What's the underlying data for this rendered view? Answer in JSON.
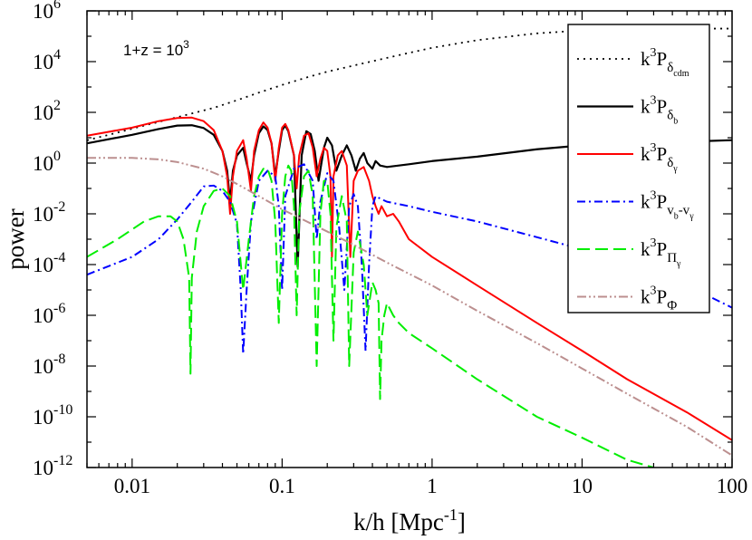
{
  "chart_data": {
    "type": "line",
    "xscale": "log",
    "yscale": "log",
    "xlim": [
      0.005,
      100
    ],
    "ylim": [
      1e-12,
      1000000.0
    ],
    "xlabel": {
      "main": "k/h [Mpc",
      "sup": "-1",
      "end": "]"
    },
    "ylabel": "power",
    "annotation": {
      "text": "1+z = 10",
      "sup": "3"
    },
    "x_ticks": [
      {
        "value": 0.01,
        "label": "0.01"
      },
      {
        "value": 0.1,
        "label": "0.1"
      },
      {
        "value": 1,
        "label": "1"
      },
      {
        "value": 10,
        "label": "10"
      },
      {
        "value": 100,
        "label": "100"
      }
    ],
    "y_ticks": [
      {
        "exp": 6,
        "base": "10",
        "sup": "6"
      },
      {
        "exp": 4,
        "base": "10",
        "sup": "4"
      },
      {
        "exp": 2,
        "base": "10",
        "sup": "2"
      },
      {
        "exp": 0,
        "base": "10",
        "sup": "0"
      },
      {
        "exp": -2,
        "base": "10",
        "sup": "-2"
      },
      {
        "exp": -4,
        "base": "10",
        "sup": "-4"
      },
      {
        "exp": -6,
        "base": "10",
        "sup": "-6"
      },
      {
        "exp": -8,
        "base": "10",
        "sup": "-8"
      },
      {
        "exp": -10,
        "base": "10",
        "sup": "-10"
      },
      {
        "exp": -12,
        "base": "10",
        "sup": "-12"
      }
    ],
    "series": [
      {
        "id": "cdm",
        "legend_main": "k",
        "legend_sup": "3",
        "legend_p": "P",
        "legend_sub": "δ",
        "legend_subsub": "cdm",
        "color": "#000000",
        "dash": "2,5",
        "width": 1.8,
        "points": [
          [
            0.005,
            7.9
          ],
          [
            0.008,
            16
          ],
          [
            0.012,
            30
          ],
          [
            0.018,
            55
          ],
          [
            0.025,
            90
          ],
          [
            0.035,
            150
          ],
          [
            0.05,
            300
          ],
          [
            0.07,
            600
          ],
          [
            0.1,
            1200
          ],
          [
            0.15,
            2500
          ],
          [
            0.2,
            4000
          ],
          [
            0.3,
            7000
          ],
          [
            0.5,
            14000
          ],
          [
            0.7,
            22000
          ],
          [
            1,
            35000
          ],
          [
            2,
            70000
          ],
          [
            5,
            130000
          ],
          [
            10,
            170000
          ],
          [
            20,
            190000
          ],
          [
            50,
            200000
          ],
          [
            100,
            200000
          ]
        ]
      },
      {
        "id": "baryon",
        "legend_main": "k",
        "legend_sup": "3",
        "legend_p": "P",
        "legend_sub": "δ",
        "legend_subsub": "b",
        "color": "#000000",
        "dash": "",
        "width": 2.2,
        "points": [
          [
            0.005,
            6
          ],
          [
            0.01,
            13
          ],
          [
            0.015,
            22
          ],
          [
            0.02,
            30
          ],
          [
            0.025,
            31
          ],
          [
            0.03,
            24
          ],
          [
            0.035,
            13
          ],
          [
            0.04,
            3
          ],
          [
            0.043,
            0.5
          ],
          [
            0.045,
            0.03
          ],
          [
            0.047,
            0.5
          ],
          [
            0.05,
            2
          ],
          [
            0.055,
            4
          ],
          [
            0.058,
            1
          ],
          [
            0.062,
            0.2
          ],
          [
            0.065,
            2
          ],
          [
            0.07,
            15
          ],
          [
            0.075,
            28
          ],
          [
            0.08,
            20
          ],
          [
            0.085,
            6
          ],
          [
            0.09,
            0.3
          ],
          [
            0.095,
            3
          ],
          [
            0.1,
            20
          ],
          [
            0.105,
            30
          ],
          [
            0.11,
            18
          ],
          [
            0.12,
            2
          ],
          [
            0.127,
            8e-05
          ],
          [
            0.135,
            2
          ],
          [
            0.145,
            18
          ],
          [
            0.155,
            14
          ],
          [
            0.165,
            3
          ],
          [
            0.175,
            0.2
          ],
          [
            0.19,
            4
          ],
          [
            0.2,
            10
          ],
          [
            0.215,
            5
          ],
          [
            0.23,
            0.5
          ],
          [
            0.25,
            2
          ],
          [
            0.27,
            5
          ],
          [
            0.29,
            2
          ],
          [
            0.31,
            0.5
          ],
          [
            0.33,
            1.5
          ],
          [
            0.35,
            2.5
          ],
          [
            0.37,
            1
          ],
          [
            0.4,
            0.6
          ],
          [
            0.42,
            1.2
          ],
          [
            0.45,
            0.8
          ],
          [
            0.5,
            0.7
          ],
          [
            0.6,
            0.8
          ],
          [
            0.7,
            0.9
          ],
          [
            1,
            1.2
          ],
          [
            2,
            1.8
          ],
          [
            5,
            3.5
          ],
          [
            10,
            5
          ],
          [
            20,
            6
          ],
          [
            50,
            7
          ],
          [
            100,
            8
          ]
        ]
      },
      {
        "id": "photon",
        "legend_main": "k",
        "legend_sup": "3",
        "legend_p": "P",
        "legend_sub": "δ",
        "legend_subsub": "γ",
        "color": "#ff0000",
        "dash": "",
        "width": 2.0,
        "points": [
          [
            0.005,
            12
          ],
          [
            0.01,
            25
          ],
          [
            0.015,
            45
          ],
          [
            0.02,
            60
          ],
          [
            0.025,
            62
          ],
          [
            0.03,
            45
          ],
          [
            0.035,
            20
          ],
          [
            0.04,
            3
          ],
          [
            0.043,
            0.3
          ],
          [
            0.045,
            0.01
          ],
          [
            0.047,
            0.3
          ],
          [
            0.05,
            3
          ],
          [
            0.055,
            8
          ],
          [
            0.058,
            1.5
          ],
          [
            0.062,
            0.08
          ],
          [
            0.065,
            3
          ],
          [
            0.07,
            20
          ],
          [
            0.075,
            40
          ],
          [
            0.08,
            25
          ],
          [
            0.085,
            6
          ],
          [
            0.09,
            0.2
          ],
          [
            0.095,
            4
          ],
          [
            0.1,
            25
          ],
          [
            0.105,
            35
          ],
          [
            0.11,
            20
          ],
          [
            0.12,
            2
          ],
          [
            0.125,
            0.1
          ],
          [
            0.13,
            2
          ],
          [
            0.14,
            12
          ],
          [
            0.15,
            15
          ],
          [
            0.16,
            4
          ],
          [
            0.17,
            0.3
          ],
          [
            0.18,
            1.5
          ],
          [
            0.19,
            4
          ],
          [
            0.2,
            3
          ],
          [
            0.21,
            0.3
          ],
          [
            0.215,
            0.0002
          ],
          [
            0.22,
            0.3
          ],
          [
            0.235,
            2
          ],
          [
            0.25,
            3
          ],
          [
            0.27,
            0.8
          ],
          [
            0.285,
            0.0002
          ],
          [
            0.3,
            0.2
          ],
          [
            0.32,
            0.5
          ],
          [
            0.35,
            0.7
          ],
          [
            0.38,
            0.2
          ],
          [
            0.4,
            0.05
          ],
          [
            0.42,
            0.02
          ],
          [
            0.44,
            0.01
          ],
          [
            0.46,
            0.02
          ],
          [
            0.5,
            0.008
          ],
          [
            0.55,
            0.01
          ],
          [
            0.6,
            0.005
          ],
          [
            0.7,
            0.001
          ],
          [
            1,
            0.0002
          ],
          [
            2,
            1.5e-05
          ],
          [
            5,
            5e-07
          ],
          [
            10,
            4e-08
          ],
          [
            20,
            3e-09
          ],
          [
            50,
            1.5e-10
          ],
          [
            100,
            1.2e-11
          ]
        ]
      },
      {
        "id": "velocity",
        "legend_main": "k",
        "legend_sup": "3",
        "legend_p": "P",
        "legend_sub": "v",
        "legend_subsub": "b",
        "legend_extra": "-v",
        "legend_extra_sub": "γ",
        "color": "#0000ff",
        "dash": "9,4,2,4",
        "width": 2.0,
        "points": [
          [
            0.005,
            4e-05
          ],
          [
            0.01,
            0.0002
          ],
          [
            0.015,
            0.001
          ],
          [
            0.02,
            0.006
          ],
          [
            0.025,
            0.03
          ],
          [
            0.03,
            0.12
          ],
          [
            0.035,
            0.13
          ],
          [
            0.04,
            0.08
          ],
          [
            0.045,
            0.03
          ],
          [
            0.05,
            0.004
          ],
          [
            0.053,
            1e-05
          ],
          [
            0.055,
            3e-08
          ],
          [
            0.058,
            1e-05
          ],
          [
            0.062,
            0.005
          ],
          [
            0.07,
            0.2
          ],
          [
            0.08,
            0.5
          ],
          [
            0.09,
            0.3
          ],
          [
            0.095,
            0.02
          ],
          [
            0.1,
            1e-05
          ],
          [
            0.105,
            0.05
          ],
          [
            0.12,
            0.6
          ],
          [
            0.14,
            0.9
          ],
          [
            0.16,
            0.2
          ],
          [
            0.17,
            0.001
          ],
          [
            0.18,
            0.03
          ],
          [
            0.2,
            0.4
          ],
          [
            0.22,
            0.2
          ],
          [
            0.24,
            0.003
          ],
          [
            0.26,
            1e-05
          ],
          [
            0.28,
            0.02
          ],
          [
            0.3,
            0.06
          ],
          [
            0.32,
            0.02
          ],
          [
            0.34,
            0.0001
          ],
          [
            0.36,
            4e-08
          ],
          [
            0.38,
            0.0001
          ],
          [
            0.4,
            0.02
          ],
          [
            0.42,
            0.05
          ],
          [
            0.45,
            0.04
          ],
          [
            0.5,
            0.03
          ],
          [
            0.7,
            0.02
          ],
          [
            1,
            0.012
          ],
          [
            2,
            0.005
          ],
          [
            5,
            0.0012
          ],
          [
            10,
            0.0004
          ],
          [
            20,
            0.0001
          ],
          [
            50,
            1.5e-05
          ],
          [
            100,
            2e-06
          ]
        ]
      },
      {
        "id": "polarization",
        "legend_main": "k",
        "legend_sup": "3",
        "legend_p": "P",
        "legend_sub": "Π",
        "legend_subsub": "γ",
        "color": "#00ee00",
        "dash": "14,6",
        "width": 2.0,
        "points": [
          [
            0.005,
            0.0002
          ],
          [
            0.008,
            0.001
          ],
          [
            0.012,
            0.005
          ],
          [
            0.015,
            0.008
          ],
          [
            0.018,
            0.008
          ],
          [
            0.02,
            0.005
          ],
          [
            0.022,
            0.001
          ],
          [
            0.024,
            3e-05
          ],
          [
            0.0245,
            5e-09
          ],
          [
            0.025,
            3e-05
          ],
          [
            0.027,
            0.002
          ],
          [
            0.03,
            0.02
          ],
          [
            0.035,
            0.08
          ],
          [
            0.04,
            0.1
          ],
          [
            0.045,
            0.05
          ],
          [
            0.05,
            0.005
          ],
          [
            0.055,
            1e-05
          ],
          [
            0.06,
            0.001
          ],
          [
            0.065,
            0.05
          ],
          [
            0.07,
            0.3
          ],
          [
            0.075,
            0.6
          ],
          [
            0.08,
            0.6
          ],
          [
            0.085,
            0.2
          ],
          [
            0.09,
            0.005
          ],
          [
            0.095,
            5e-07
          ],
          [
            0.1,
            0.01
          ],
          [
            0.105,
            0.3
          ],
          [
            0.11,
            0.8
          ],
          [
            0.115,
            0.5
          ],
          [
            0.12,
            0.02
          ],
          [
            0.125,
            1e-06
          ],
          [
            0.13,
            0.01
          ],
          [
            0.14,
            0.3
          ],
          [
            0.15,
            0.5
          ],
          [
            0.16,
            0.05
          ],
          [
            0.17,
            1e-08
          ],
          [
            0.18,
            0.01
          ],
          [
            0.19,
            0.2
          ],
          [
            0.2,
            0.2
          ],
          [
            0.21,
            0.01
          ],
          [
            0.22,
            1e-07
          ],
          [
            0.23,
            0.003
          ],
          [
            0.25,
            0.05
          ],
          [
            0.27,
            0.005
          ],
          [
            0.28,
            1e-08
          ],
          [
            0.3,
            0.0003
          ],
          [
            0.32,
            0.002
          ],
          [
            0.35,
            0.0001
          ],
          [
            0.37,
            1e-06
          ],
          [
            0.4,
            2e-05
          ],
          [
            0.42,
            1e-05
          ],
          [
            0.44,
            3e-06
          ],
          [
            0.45,
            5e-10
          ],
          [
            0.46,
            1e-07
          ],
          [
            0.48,
            1e-06
          ],
          [
            0.5,
            3e-06
          ],
          [
            0.55,
            1e-06
          ],
          [
            0.6,
            5e-07
          ],
          [
            0.7,
            2e-07
          ],
          [
            1,
            5e-08
          ],
          [
            2,
            3e-09
          ],
          [
            5,
            1e-10
          ],
          [
            10,
            1.5e-11
          ],
          [
            20,
            2e-12
          ],
          [
            30,
            1e-12
          ]
        ]
      },
      {
        "id": "potential",
        "legend_main": "k",
        "legend_sup": "3",
        "legend_p": "P",
        "legend_sub": "Φ",
        "legend_subsub": "",
        "color": "#bc8f8f",
        "dash": "10,3,2,3,2,3",
        "width": 2.0,
        "points": [
          [
            0.005,
            1.6
          ],
          [
            0.01,
            1.6
          ],
          [
            0.015,
            1.4
          ],
          [
            0.02,
            1.1
          ],
          [
            0.03,
            0.6
          ],
          [
            0.04,
            0.3
          ],
          [
            0.05,
            0.15
          ],
          [
            0.07,
            0.05
          ],
          [
            0.1,
            0.015
          ],
          [
            0.2,
            0.002
          ],
          [
            0.3,
            0.0006
          ],
          [
            0.5,
            0.00012
          ],
          [
            1,
            1.5e-05
          ],
          [
            2,
            1.5e-06
          ],
          [
            5,
            8e-08
          ],
          [
            10,
            8e-09
          ],
          [
            20,
            8e-10
          ],
          [
            50,
            4e-11
          ],
          [
            100,
            3e-12
          ]
        ]
      }
    ]
  }
}
